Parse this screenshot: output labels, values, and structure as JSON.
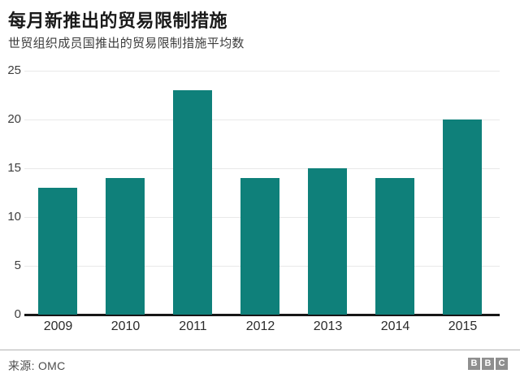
{
  "header": {
    "title": "每月新推出的贸易限制措施",
    "subtitle": "世贸组织成员国推出的贸易限制措施平均数"
  },
  "chart_data": {
    "type": "bar",
    "categories": [
      "2009",
      "2010",
      "2011",
      "2012",
      "2013",
      "2014",
      "2015"
    ],
    "values": [
      13,
      14,
      23,
      14,
      15,
      14,
      20
    ],
    "title": "每月新推出的贸易限制措施",
    "subtitle": "世贸组织成员国推出的贸易限制措施平均数",
    "xlabel": "",
    "ylabel": "",
    "ylim": [
      0,
      25
    ],
    "yticks": [
      0,
      5,
      10,
      15,
      20,
      25
    ],
    "grid": true,
    "legend": "none",
    "bar_color": "#0f807a"
  },
  "footer": {
    "source": "来源: OMC",
    "logo_letters": [
      "B",
      "B",
      "C"
    ]
  },
  "colors": {
    "bar": "#0f807a",
    "gridline": "#e9e9e9",
    "baseline": "#161616",
    "title_text": "#1a1a1a",
    "subtitle_text": "#3d3d3d",
    "axis_text": "#3d3d3d",
    "divider": "#b3b3b3",
    "logo_gray": "#8f8f8f"
  }
}
